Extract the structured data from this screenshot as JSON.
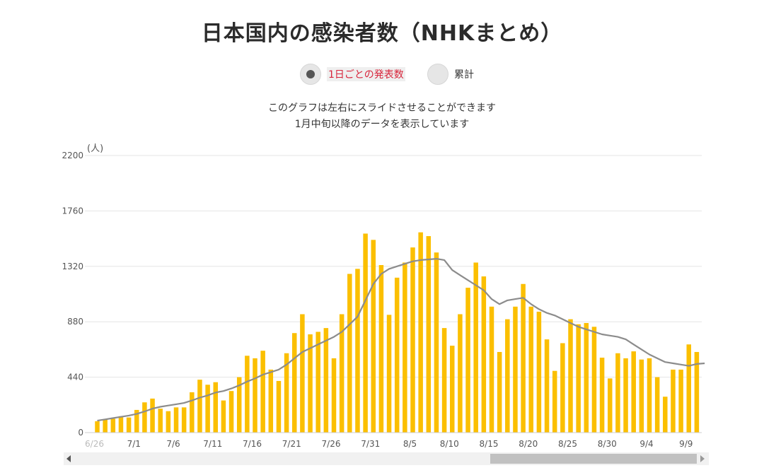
{
  "title": "日本国内の感染者数（NHKまとめ）",
  "toggle": {
    "daily_label": "1日ごとの発表数",
    "cumulative_label": "累計",
    "selected": "daily"
  },
  "notes": {
    "line1": "このグラフは左右にスライドさせることができます",
    "line2": "1月中旬以降のデータを表示しています"
  },
  "colors": {
    "bar": "#fbbf00",
    "line": "#8c8c8c",
    "grid": "#e5e5e5",
    "accent": "#d8243b"
  },
  "chart_data": {
    "type": "bar",
    "yunit": "(人)",
    "ylim": [
      0,
      2200
    ],
    "yticks": [
      0,
      440,
      880,
      1320,
      1760,
      2200
    ],
    "ytick_labels": [
      "0",
      "440",
      "880",
      "1320",
      "1760",
      "2200"
    ],
    "xtick_labels": [
      "6/26",
      "7/1",
      "7/6",
      "7/11",
      "7/16",
      "7/21",
      "7/26",
      "7/31",
      "8/5",
      "8/10",
      "8/15",
      "8/20",
      "8/25",
      "8/30",
      "9/4",
      "9/9"
    ],
    "xtick_days_from_first_bar": [
      0,
      5,
      10,
      15,
      20,
      25,
      30,
      35,
      40,
      45,
      50,
      55,
      60,
      65,
      70,
      75
    ],
    "dates": [
      "6/26",
      "6/27",
      "6/28",
      "6/29",
      "6/30",
      "7/1",
      "7/2",
      "7/3",
      "7/4",
      "7/5",
      "7/6",
      "7/7",
      "7/8",
      "7/9",
      "7/10",
      "7/11",
      "7/12",
      "7/13",
      "7/14",
      "7/15",
      "7/16",
      "7/17",
      "7/18",
      "7/19",
      "7/20",
      "7/21",
      "7/22",
      "7/23",
      "7/24",
      "7/25",
      "7/26",
      "7/27",
      "7/28",
      "7/29",
      "7/30",
      "7/31",
      "8/1",
      "8/2",
      "8/3",
      "8/4",
      "8/5",
      "8/6",
      "8/7",
      "8/8",
      "8/9",
      "8/10",
      "8/11",
      "8/12",
      "8/13",
      "8/14",
      "8/15",
      "8/16",
      "8/17",
      "8/18",
      "8/19",
      "8/20",
      "8/21",
      "8/22",
      "8/23",
      "8/24",
      "8/25",
      "8/26",
      "8/27",
      "8/28",
      "8/29",
      "8/30",
      "8/31",
      "9/1",
      "9/2",
      "9/3",
      "9/4",
      "9/5",
      "9/6",
      "9/7",
      "9/8",
      "9/9",
      "9/10",
      "9/11"
    ],
    "series": [
      {
        "kind": "bar",
        "values": [
          90,
          105,
          110,
          130,
          120,
          180,
          240,
          270,
          190,
          170,
          200,
          200,
          320,
          420,
          380,
          400,
          255,
          330,
          440,
          610,
          590,
          650,
          500,
          410,
          630,
          790,
          940,
          780,
          800,
          830,
          590,
          940,
          1260,
          1300,
          1580,
          1530,
          1330,
          935,
          1230,
          1350,
          1470,
          1590,
          1560,
          1430,
          830,
          690,
          940,
          1150,
          1350,
          1240,
          1000,
          640,
          900,
          1000,
          1180,
          1000,
          960,
          740,
          490,
          710,
          900,
          860,
          870,
          840,
          595,
          430,
          630,
          590,
          645,
          580,
          590,
          440,
          285,
          500,
          500,
          700,
          640,
          0
        ],
        "values_note": "last bar omitted"
      },
      {
        "kind": "line",
        "values": [
          95,
          105,
          115,
          125,
          135,
          148,
          168,
          190,
          205,
          215,
          225,
          235,
          255,
          278,
          295,
          318,
          330,
          350,
          375,
          405,
          430,
          460,
          480,
          500,
          540,
          590,
          640,
          670,
          700,
          730,
          760,
          800,
          860,
          920,
          1050,
          1180,
          1260,
          1300,
          1320,
          1340,
          1360,
          1370,
          1375,
          1380,
          1370,
          1290,
          1250,
          1210,
          1170,
          1130,
          1060,
          1020,
          1050,
          1060,
          1070,
          1020,
          980,
          950,
          930,
          900,
          870,
          840,
          820,
          800,
          780,
          770,
          760,
          740,
          700,
          660,
          620,
          590,
          560,
          550,
          540,
          530,
          545,
          550
        ]
      }
    ]
  }
}
